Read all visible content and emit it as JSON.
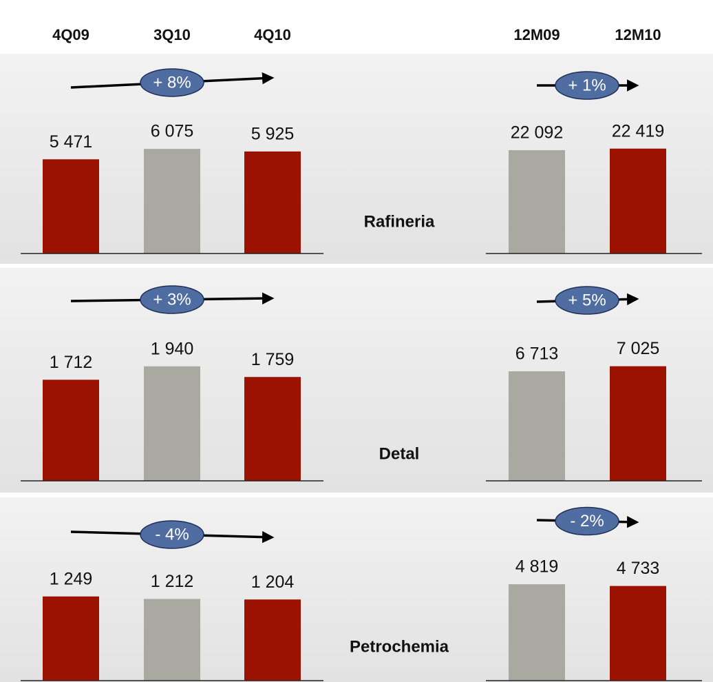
{
  "segments": [
    "Rafineria",
    "Detal",
    "Petrochemia"
  ],
  "chart_data": [
    {
      "type": "bar",
      "categories": [
        "4Q09",
        "3Q10",
        "4Q10"
      ],
      "colors": [
        "#9b1300",
        "#a9a9a1",
        "#9b1300"
      ],
      "panels": [
        {
          "values": [
            5471,
            6075,
            5925
          ],
          "value_labels": [
            "5 471",
            "6 075",
            "5 925"
          ],
          "ylim": [
            0,
            7200
          ],
          "change": "+ 8%"
        },
        {
          "values": [
            1712,
            1940,
            1759
          ],
          "value_labels": [
            "1 712",
            "1 940",
            "1 759"
          ],
          "ylim": [
            0,
            2100
          ],
          "change": "+ 3%"
        },
        {
          "values": [
            1249,
            1212,
            1204
          ],
          "value_labels": [
            "1 249",
            "1 212",
            "1 204"
          ],
          "ylim": [
            0,
            1840
          ],
          "change": "- 4%"
        }
      ]
    },
    {
      "type": "bar",
      "categories": [
        "12M09",
        "12M10"
      ],
      "colors": [
        "#a9a9a1",
        "#9b1300"
      ],
      "panels": [
        {
          "values": [
            22092,
            22419
          ],
          "value_labels": [
            "22 092",
            "22 419"
          ],
          "ylim": [
            0,
            26500
          ],
          "change": "+ 1%"
        },
        {
          "values": [
            6713,
            7025
          ],
          "value_labels": [
            "6 713",
            "7 025"
          ],
          "ylim": [
            0,
            7600
          ],
          "change": "+ 5%"
        },
        {
          "values": [
            4819,
            4733
          ],
          "value_labels": [
            "4 819",
            "4 733"
          ],
          "ylim": [
            0,
            6200
          ],
          "change": "- 2%"
        }
      ]
    }
  ]
}
